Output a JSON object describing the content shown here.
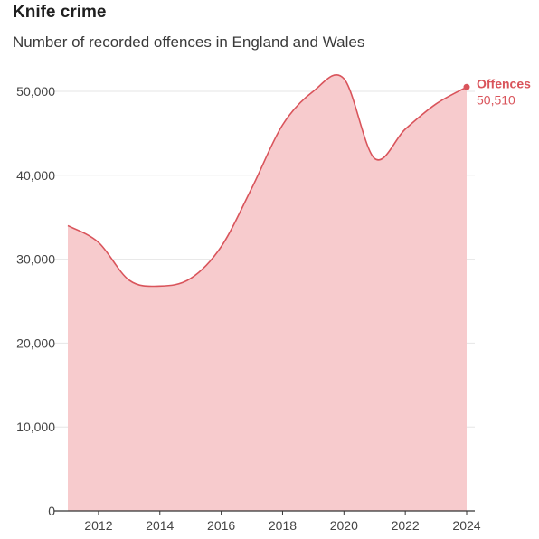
{
  "title": "Knife crime",
  "subtitle": "Number of recorded offences in England and Wales",
  "colors": {
    "line": "#d9545b",
    "fill": "#f7cbcd",
    "grid": "#e6e6e6",
    "axis": "#333333"
  },
  "chart_data": {
    "type": "area",
    "title": "Knife crime",
    "subtitle": "Number of recorded offences in England and Wales",
    "xlabel": "",
    "ylabel": "",
    "x": [
      2011,
      2012,
      2013,
      2014,
      2015,
      2016,
      2017,
      2018,
      2019,
      2020,
      2021,
      2022,
      2023,
      2024
    ],
    "series": [
      {
        "name": "Offences",
        "values": [
          34000,
          32000,
          27500,
          26800,
          27700,
          31500,
          38500,
          46000,
          50000,
          51500,
          42000,
          45500,
          48500,
          50510
        ]
      }
    ],
    "xlim": [
      2011,
      2024
    ],
    "ylim": [
      0,
      50000
    ],
    "xticks": [
      2012,
      2014,
      2016,
      2018,
      2020,
      2022,
      2024
    ],
    "yticks": [
      0,
      10000,
      20000,
      30000,
      40000,
      50000
    ],
    "ytick_labels": [
      "0",
      "10,000",
      "20,000",
      "30,000",
      "40,000",
      "50,000"
    ],
    "end_label": {
      "series": "Offences",
      "value_text": "50,510"
    },
    "grid": "horizontal",
    "legend": "none"
  }
}
